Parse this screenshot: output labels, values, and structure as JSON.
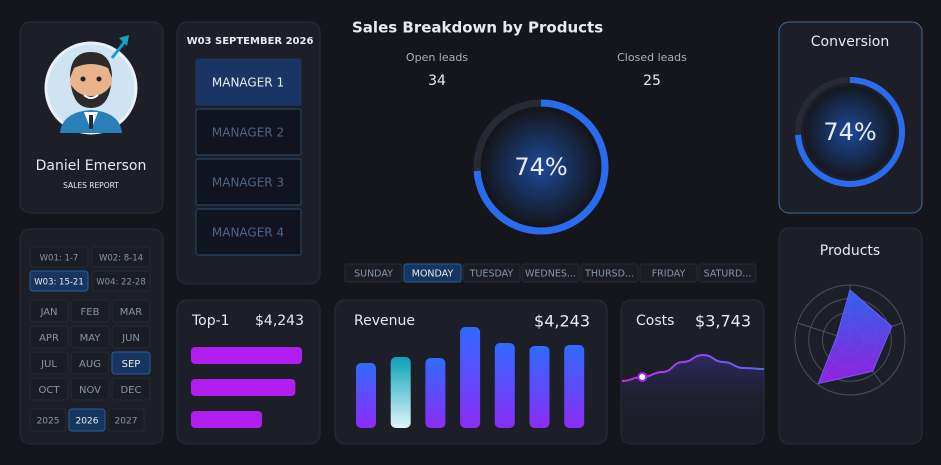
{
  "profile": {
    "name": "Daniel Emerson",
    "subtitle": "SALES REPORT"
  },
  "managers": {
    "period": "W03  SEPTEMBER  2026",
    "items": [
      "MANAGER 1",
      "MANAGER 2",
      "MANAGER 3",
      "MANAGER 4"
    ],
    "selected": 0
  },
  "calendar": {
    "weeks": [
      "W01: 1-7",
      "W02: 8-14",
      "W03: 15-21",
      "W04: 22-28"
    ],
    "selected_week": 2,
    "months": [
      "JAN",
      "FEB",
      "MAR",
      "APR",
      "MAY",
      "JUN",
      "JUL",
      "AUG",
      "SEP",
      "OCT",
      "NOV",
      "DEC"
    ],
    "selected_month": 8,
    "years": [
      "2025",
      "2026",
      "2027"
    ],
    "selected_year": 1
  },
  "breakdown": {
    "title": "Sales Breakdown by Products",
    "open_label": "Open leads",
    "open_value": 34,
    "closed_label": "Closed leads",
    "closed_value": 25,
    "value": 74,
    "value_label": "74%",
    "days": [
      "SUNDAY",
      "MONDAY",
      "TUESDAY",
      "WEDNES...",
      "THURSD...",
      "FRIDAY",
      "SATURD..."
    ],
    "selected_day": 1
  },
  "conversion": {
    "title": "Conversion",
    "value": 74,
    "value_label": "74%"
  },
  "products": {
    "title": "Products",
    "values": [
      91,
      80,
      70,
      98,
      25
    ]
  },
  "top1": {
    "title": "Top-1",
    "value_label": "$4,243",
    "values": [
      100,
      94,
      64
    ]
  },
  "revenue": {
    "title": "Revenue",
    "value_label": "$4,243",
    "values": [
      65,
      71,
      70,
      101,
      85,
      82,
      83
    ],
    "selected": 1
  },
  "costs": {
    "title": "Costs",
    "value_label": "$3,743",
    "values": [
      19,
      23,
      28,
      38,
      45,
      38,
      32,
      31
    ],
    "marker": 1
  }
}
